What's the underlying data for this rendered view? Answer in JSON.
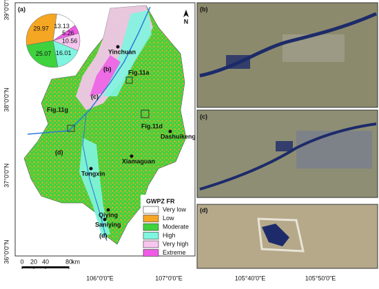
{
  "panel_labels": [
    "(a)",
    "(b)",
    "(c)",
    "(d)"
  ],
  "map": {
    "lat_labels": [
      "39°0'0\"N",
      "38°0'0\"N",
      "37°0'0\"N",
      "36°0'0\"N"
    ],
    "lon_labels": [
      "106°0'0\"E",
      "107°0'0\"E"
    ],
    "north": "N",
    "scale_bar": {
      "ticks": [
        0,
        20,
        40,
        80
      ],
      "unit": "km"
    },
    "places": [
      "Yinchuan",
      "Dashuikeng",
      "Xiamaguan",
      "Tongxin",
      "Qiying",
      "Saniying"
    ],
    "fig_labels": [
      "Fig.11a",
      "Fig.11g",
      "Fig.11d"
    ],
    "inset_labels": [
      "(b)",
      "(c)",
      "(d)"
    ]
  },
  "pie": {
    "values": [
      29.97,
      13.13,
      5.26,
      10.56,
      16.01,
      25.07
    ],
    "colors": [
      "#f5a623",
      "#ffffff",
      "#ee5be6",
      "#f7c6f0",
      "#7ff5e0",
      "#3fd23f"
    ]
  },
  "legend": {
    "title": "GWPZ FR",
    "entries": [
      {
        "label": "Very low",
        "color": "#ffffff"
      },
      {
        "label": "Low",
        "color": "#f5a623"
      },
      {
        "label": "Moderate",
        "color": "#3fd23f"
      },
      {
        "label": "High",
        "color": "#7ff5e0"
      },
      {
        "label": "Very high",
        "color": "#f7c6f0"
      },
      {
        "label": "Extreme",
        "color": "#ee5be6"
      }
    ]
  },
  "photo_lon_labels": [
    "105°40'0\"E",
    "105°50'0\"E"
  ]
}
